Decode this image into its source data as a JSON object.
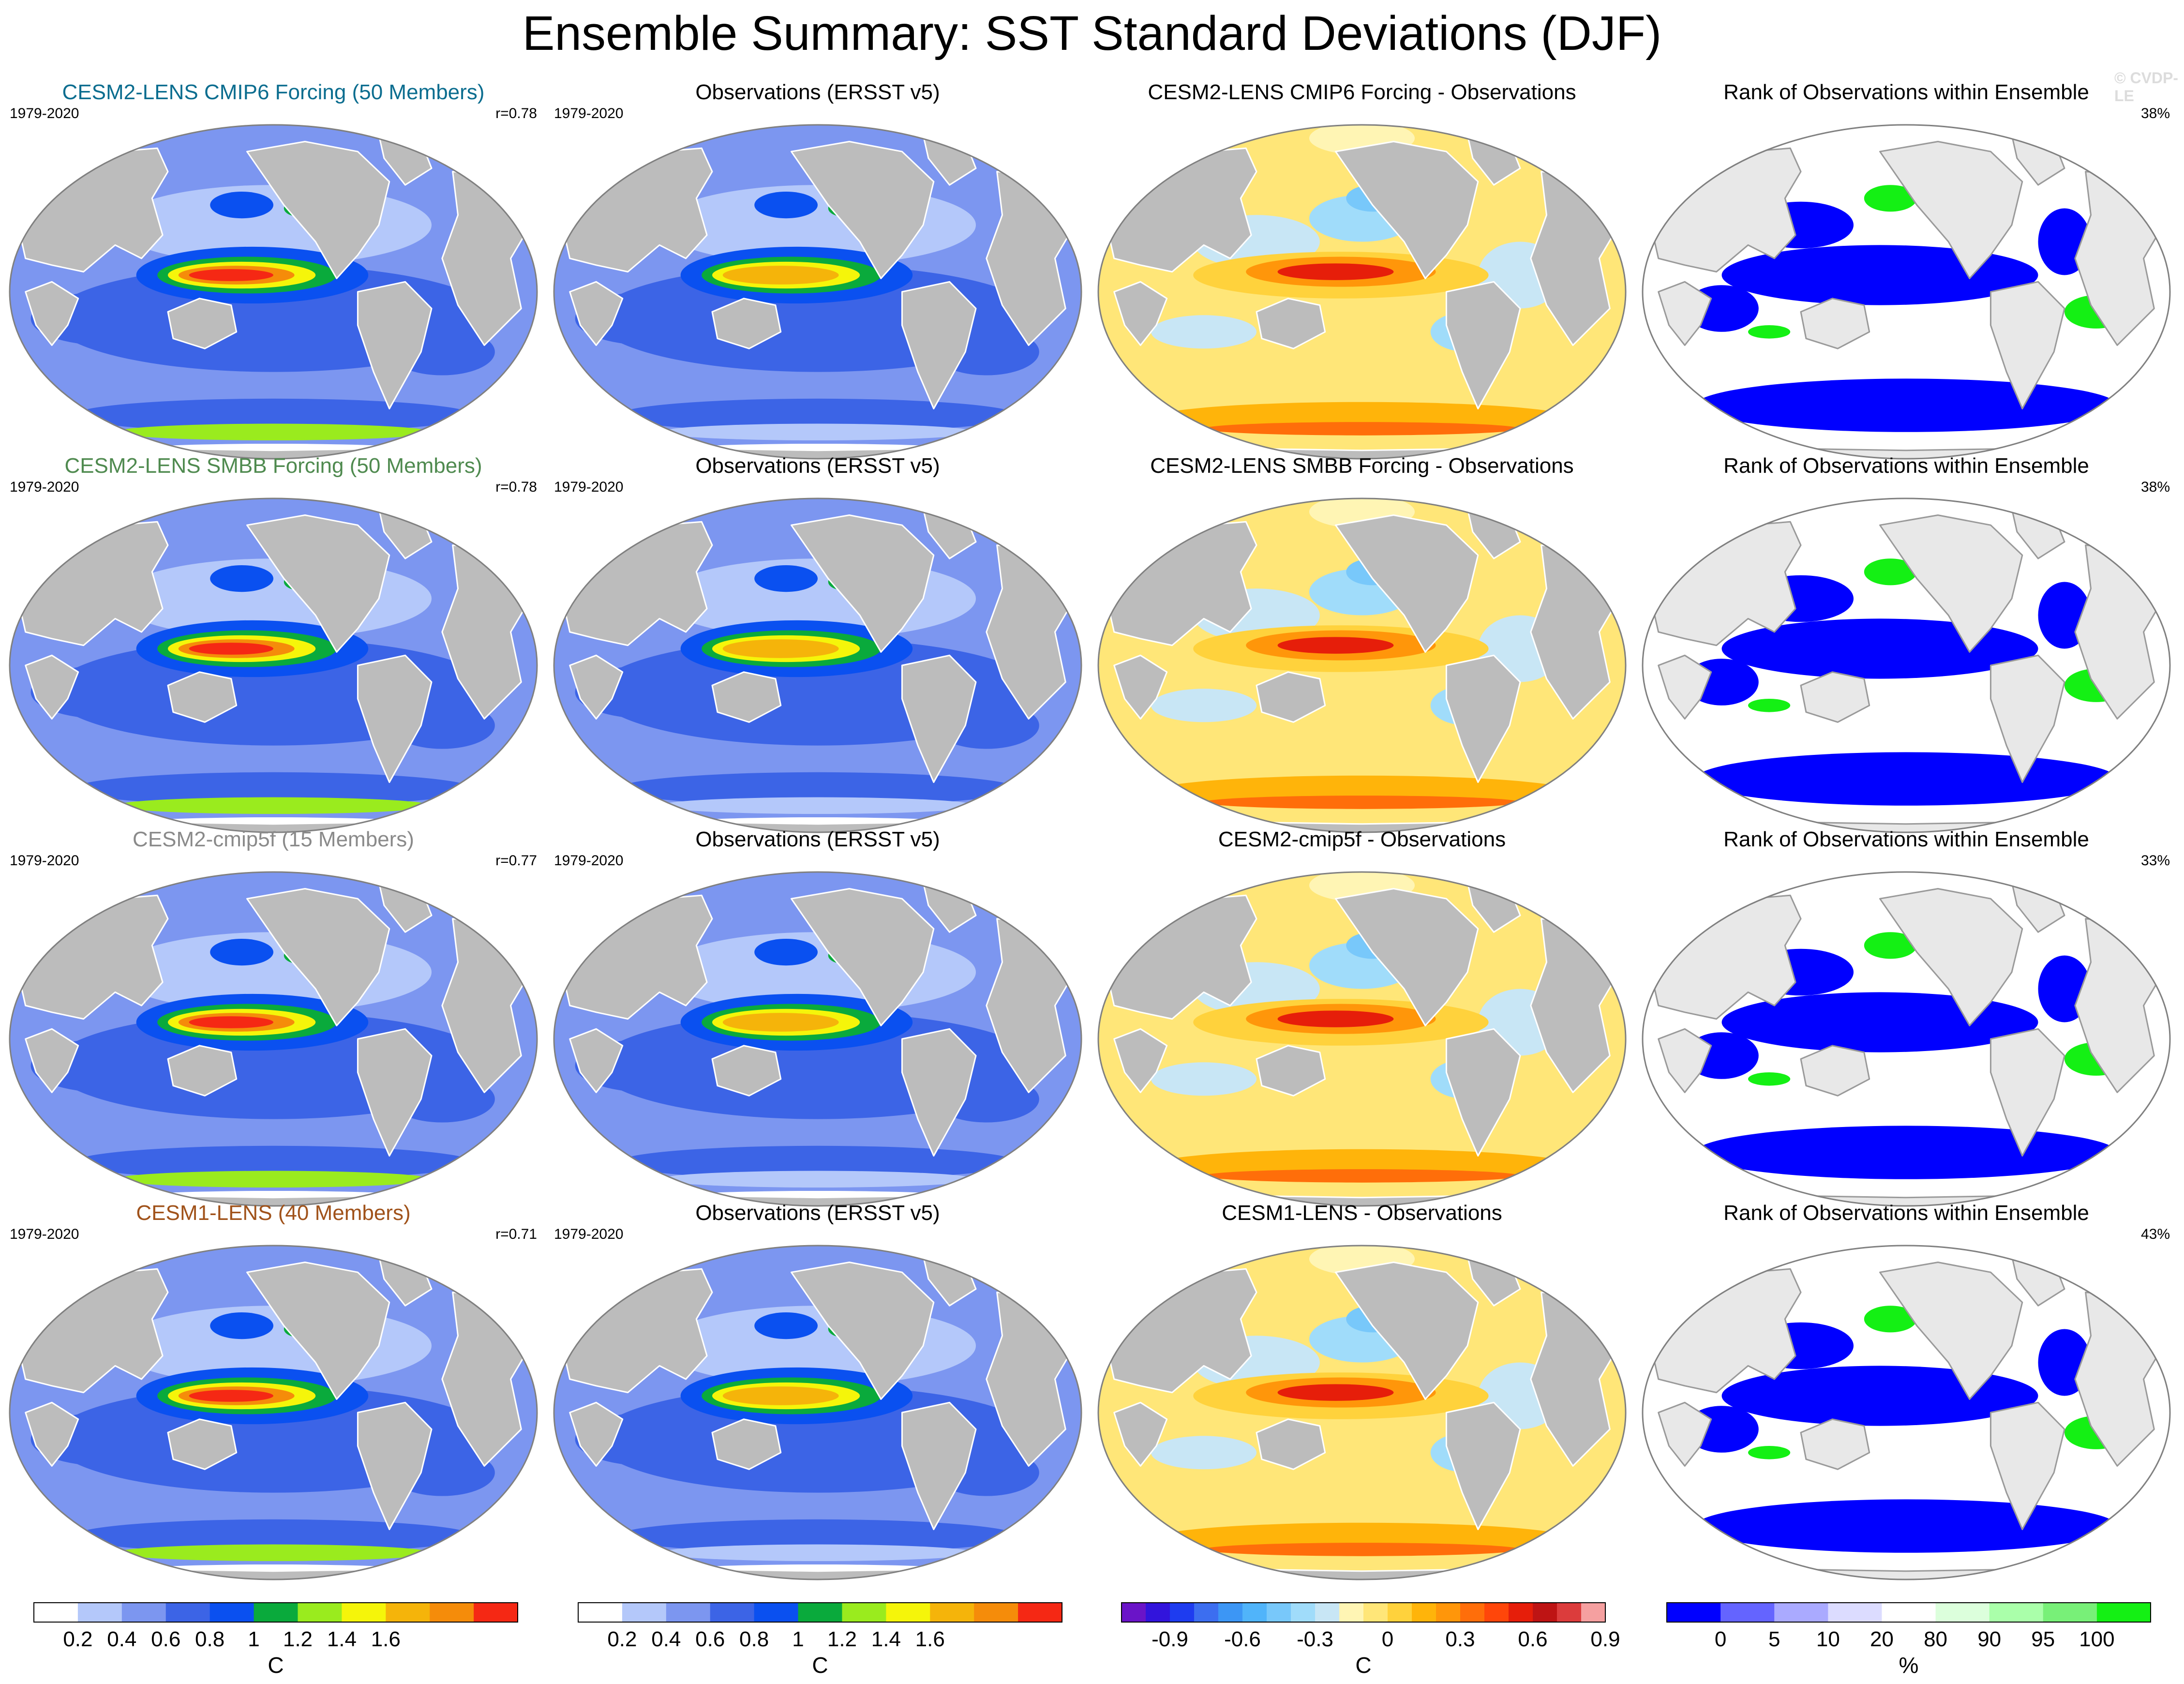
{
  "title": "Ensemble Summary: SST Standard Deviations (DJF)",
  "watermark": "© CVDP-LE",
  "colors": {
    "land": "#bcbcbc",
    "rank_land": "#e8e8e8",
    "coast": "#ffffff",
    "model_title_colors": [
      "#0b6d8f",
      "#4f8a4f",
      "#8a8a8a",
      "#a0521a"
    ]
  },
  "rows": [
    {
      "model": {
        "title": "CESM2-LENS CMIP6 Forcing (50 Members)",
        "period": "1979-2020",
        "corr": "r=0.78"
      },
      "obs": {
        "title": "Observations (ERSST v5)",
        "period": "1979-2020"
      },
      "diff": {
        "title": "CESM2-LENS CMIP6 Forcing - Observations"
      },
      "rank": {
        "title": "Rank of Observations within Ensemble",
        "pct": "38%"
      }
    },
    {
      "model": {
        "title": "CESM2-LENS SMBB Forcing (50 Members)",
        "period": "1979-2020",
        "corr": "r=0.78"
      },
      "obs": {
        "title": "Observations (ERSST v5)",
        "period": "1979-2020"
      },
      "diff": {
        "title": "CESM2-LENS SMBB Forcing - Observations"
      },
      "rank": {
        "title": "Rank of Observations within Ensemble",
        "pct": "38%"
      }
    },
    {
      "model": {
        "title": "CESM2-cmip5f (15 Members)",
        "period": "1979-2020",
        "corr": "r=0.77"
      },
      "obs": {
        "title": "Observations (ERSST v5)",
        "period": "1979-2020"
      },
      "diff": {
        "title": "CESM2-cmip5f - Observations"
      },
      "rank": {
        "title": "Rank of Observations within Ensemble",
        "pct": "33%"
      }
    },
    {
      "model": {
        "title": "CESM1-LENS (40 Members)",
        "period": "1979-2020",
        "corr": "r=0.71"
      },
      "obs": {
        "title": "Observations (ERSST v5)",
        "period": "1979-2020"
      },
      "diff": {
        "title": "CESM1-LENS - Observations"
      },
      "rank": {
        "title": "Rank of Observations within Ensemble",
        "pct": "43%"
      }
    }
  ],
  "chart_data": [
    {
      "type": "heatmap",
      "name": "sst_std_colorbar",
      "levels": [
        "0.2",
        "0.4",
        "0.6",
        "0.8",
        "1",
        "1.2",
        "1.4",
        "1.6"
      ],
      "colors": [
        "#ffffff",
        "#b4c8fa",
        "#7c96f0",
        "#3c64e6",
        "#0a50f0",
        "#0aaa3c",
        "#9aeb1e",
        "#f5f50a",
        "#f5b40a",
        "#f58c0a",
        "#f52814"
      ],
      "unit": "C",
      "used_by": [
        "model",
        "obs"
      ]
    },
    {
      "type": "heatmap",
      "name": "sst_diff_colorbar",
      "levels": [
        "-0.9",
        "-0.6",
        "-0.3",
        "0",
        "0.3",
        "0.6",
        "0.9"
      ],
      "colors": [
        "#6a14c8",
        "#3214dc",
        "#1e3cf0",
        "#3c6ef0",
        "#3c96f5",
        "#50b4fa",
        "#78c8fa",
        "#a0dcfa",
        "#c8e6f5",
        "#fff5b4",
        "#ffe678",
        "#ffd23c",
        "#ffb40a",
        "#ff960a",
        "#ff6e0a",
        "#ff460a",
        "#e61e0a",
        "#be1414",
        "#dc3c3c",
        "#f5a0a0"
      ],
      "unit": "C",
      "used_by": [
        "diff"
      ]
    },
    {
      "type": "heatmap",
      "name": "rank_colorbar",
      "levels": [
        "0",
        "5",
        "10",
        "20",
        "80",
        "90",
        "95",
        "100"
      ],
      "colors": [
        "#0000ff",
        "#6464ff",
        "#aaaaff",
        "#dcdcff",
        "#ffffff",
        "#dcffdc",
        "#aaffaa",
        "#78f078",
        "#14f014"
      ],
      "unit": "%",
      "used_by": [
        "rank"
      ]
    }
  ]
}
